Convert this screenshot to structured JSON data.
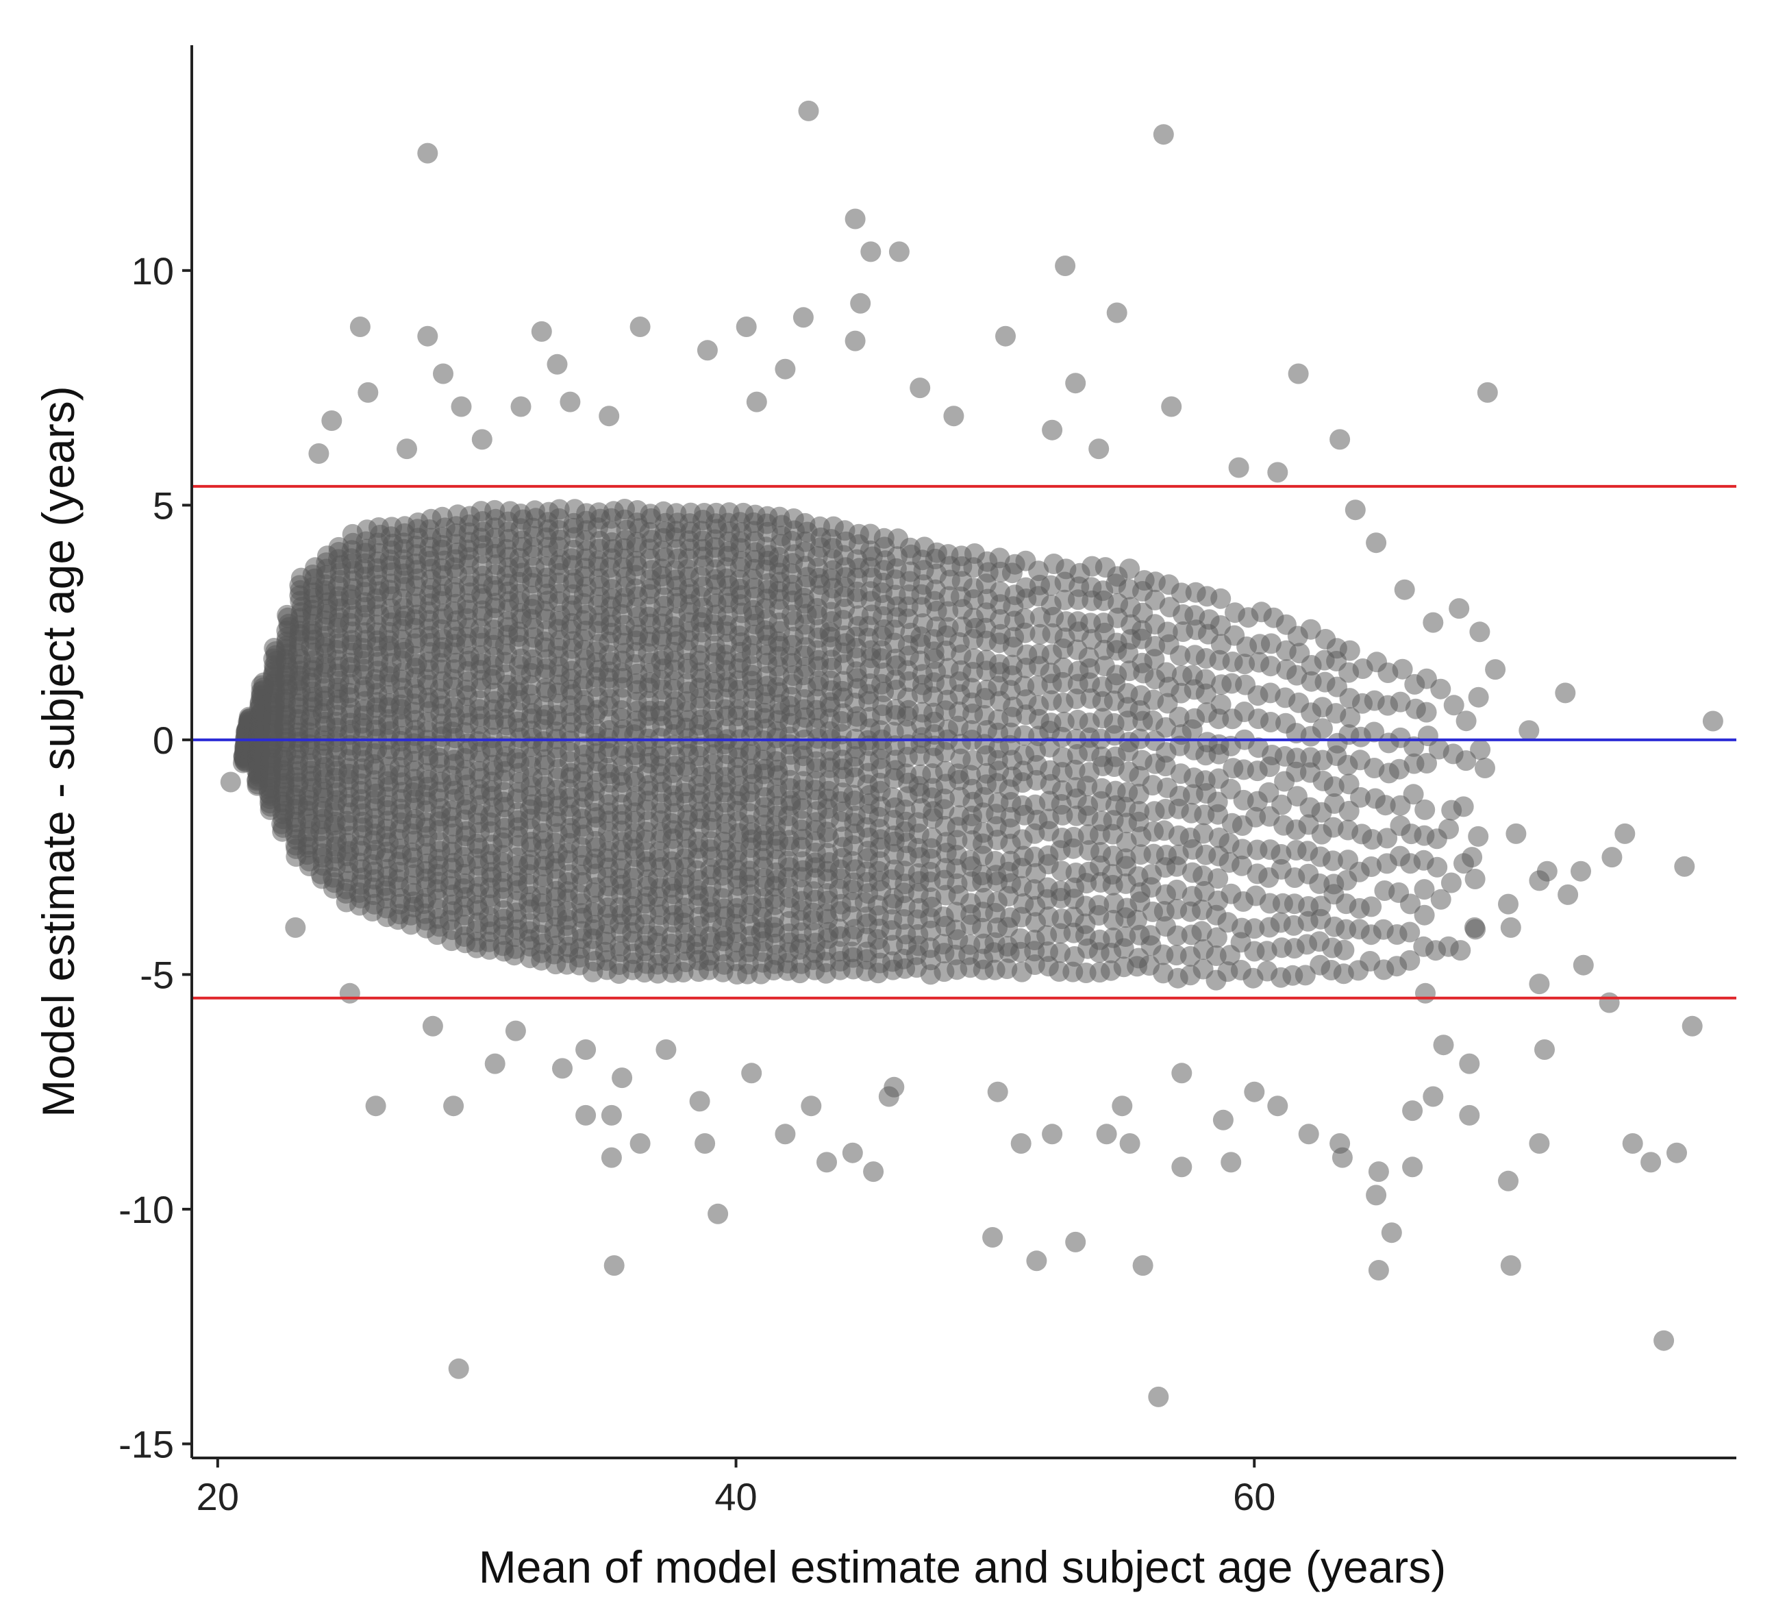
{
  "chart_data": {
    "type": "scatter",
    "title": "",
    "xlabel": "Mean of model estimate and subject age (years)",
    "ylabel": "Model estimate - subject age (years)",
    "xlim": [
      19,
      78.6
    ],
    "ylim": [
      -15.3,
      14.8
    ],
    "x_ticks": [
      20,
      40,
      60
    ],
    "x_tick_labels": [
      "20",
      "40",
      "60"
    ],
    "y_ticks": [
      10,
      5,
      0,
      -5,
      -10,
      -15
    ],
    "y_tick_labels": [
      "10",
      "5",
      "0",
      "-5",
      "-10",
      "-15"
    ],
    "grid": false,
    "legend": "none",
    "point_color": "#555555",
    "point_opacity": 0.5,
    "reference_lines": [
      {
        "kind": "mean",
        "y": 0,
        "color": "#2b2bd6"
      },
      {
        "kind": "upper limit of agreement",
        "y": 5.4,
        "color": "#e0262a"
      },
      {
        "kind": "lower limit of agreement",
        "y": -5.5,
        "color": "#e0262a"
      }
    ],
    "dense_band": {
      "note": "approximate envelope of the dense point cloud, by x",
      "x": [
        21,
        23,
        25,
        30,
        35,
        40,
        45,
        50,
        55,
        60,
        65,
        68
      ],
      "y_upper": [
        0.5,
        3.5,
        4.5,
        5.0,
        5.0,
        5.0,
        4.5,
        4.0,
        3.8,
        3.0,
        2.0,
        1.5
      ],
      "y_lower": [
        -0.5,
        -2.5,
        -3.5,
        -4.5,
        -5.0,
        -5.0,
        -5.0,
        -5.0,
        -5.0,
        -5.2,
        -5.0,
        -4.5
      ],
      "x_bins": [
        21,
        22,
        23,
        24,
        25,
        26,
        27,
        28,
        29,
        30,
        31,
        32,
        33,
        34,
        35,
        36,
        37,
        38,
        39,
        40,
        41,
        42,
        43,
        44,
        45,
        46,
        47,
        48,
        49,
        50,
        51,
        52,
        53,
        54,
        55,
        56,
        57,
        58,
        59,
        60,
        61,
        62,
        63,
        64,
        65,
        66,
        67,
        68
      ],
      "bin_density": [
        9,
        10,
        10,
        10,
        10,
        10,
        10,
        10,
        10,
        10,
        10,
        10,
        10,
        10,
        10,
        10,
        10,
        10,
        10,
        10,
        10,
        9,
        9,
        8,
        8,
        7,
        7,
        6,
        6,
        6,
        5,
        5,
        5,
        5,
        5,
        4,
        4,
        4,
        3,
        3,
        3,
        3,
        3,
        2,
        2,
        2,
        1,
        1
      ]
    },
    "outliers": [
      {
        "x": 42.8,
        "y": 13.4
      },
      {
        "x": 28.1,
        "y": 12.5
      },
      {
        "x": 56.5,
        "y": 12.9
      },
      {
        "x": 44.6,
        "y": 11.1
      },
      {
        "x": 45.2,
        "y": 10.4
      },
      {
        "x": 46.3,
        "y": 10.4
      },
      {
        "x": 52.7,
        "y": 10.1
      },
      {
        "x": 54.7,
        "y": 9.1
      },
      {
        "x": 44.8,
        "y": 9.3
      },
      {
        "x": 42.6,
        "y": 9.0
      },
      {
        "x": 25.5,
        "y": 8.8
      },
      {
        "x": 28.1,
        "y": 8.6
      },
      {
        "x": 32.5,
        "y": 8.7
      },
      {
        "x": 36.3,
        "y": 8.8
      },
      {
        "x": 40.4,
        "y": 8.8
      },
      {
        "x": 44.6,
        "y": 8.5
      },
      {
        "x": 50.4,
        "y": 8.6
      },
      {
        "x": 28.7,
        "y": 7.8
      },
      {
        "x": 33.1,
        "y": 8.0
      },
      {
        "x": 38.9,
        "y": 8.3
      },
      {
        "x": 41.9,
        "y": 7.9
      },
      {
        "x": 61.7,
        "y": 7.8
      },
      {
        "x": 25.8,
        "y": 7.4
      },
      {
        "x": 29.4,
        "y": 7.1
      },
      {
        "x": 31.7,
        "y": 7.1
      },
      {
        "x": 33.6,
        "y": 7.2
      },
      {
        "x": 47.1,
        "y": 7.5
      },
      {
        "x": 53.1,
        "y": 7.6
      },
      {
        "x": 56.8,
        "y": 7.1
      },
      {
        "x": 69.0,
        "y": 7.4
      },
      {
        "x": 24.4,
        "y": 6.8
      },
      {
        "x": 35.1,
        "y": 6.9
      },
      {
        "x": 40.8,
        "y": 7.2
      },
      {
        "x": 48.4,
        "y": 6.9
      },
      {
        "x": 52.2,
        "y": 6.6
      },
      {
        "x": 23.9,
        "y": 6.1
      },
      {
        "x": 27.3,
        "y": 6.2
      },
      {
        "x": 30.2,
        "y": 6.4
      },
      {
        "x": 54.0,
        "y": 6.2
      },
      {
        "x": 63.3,
        "y": 6.4
      },
      {
        "x": 59.4,
        "y": 5.8
      },
      {
        "x": 60.9,
        "y": 5.7
      },
      {
        "x": 63.9,
        "y": 4.9
      },
      {
        "x": 64.7,
        "y": 4.2
      },
      {
        "x": 65.8,
        "y": 3.2
      },
      {
        "x": 66.9,
        "y": 2.5
      },
      {
        "x": 67.9,
        "y": 2.8
      },
      {
        "x": 68.7,
        "y": 2.3
      },
      {
        "x": 69.3,
        "y": 1.5
      },
      {
        "x": 72.0,
        "y": 1.0
      },
      {
        "x": 70.6,
        "y": 0.2
      },
      {
        "x": 77.7,
        "y": 0.4
      },
      {
        "x": 68.9,
        "y": -0.6
      },
      {
        "x": 20.5,
        "y": -0.9
      },
      {
        "x": 67.5,
        "y": -1.9
      },
      {
        "x": 70.1,
        "y": -2.0
      },
      {
        "x": 68.4,
        "y": -2.5
      },
      {
        "x": 71.3,
        "y": -2.8
      },
      {
        "x": 72.6,
        "y": -2.8
      },
      {
        "x": 73.8,
        "y": -2.5
      },
      {
        "x": 74.3,
        "y": -2.0
      },
      {
        "x": 76.6,
        "y": -2.7
      },
      {
        "x": 71.0,
        "y": -3.0
      },
      {
        "x": 67.2,
        "y": -3.4
      },
      {
        "x": 69.8,
        "y": -3.5
      },
      {
        "x": 72.1,
        "y": -3.3
      },
      {
        "x": 68.5,
        "y": -4.0
      },
      {
        "x": 69.9,
        "y": -4.0
      },
      {
        "x": 23.0,
        "y": -4.0
      },
      {
        "x": 25.1,
        "y": -5.4
      },
      {
        "x": 71.0,
        "y": -5.2
      },
      {
        "x": 72.7,
        "y": -4.8
      },
      {
        "x": 73.7,
        "y": -5.6
      },
      {
        "x": 76.9,
        "y": -6.1
      },
      {
        "x": 66.6,
        "y": -5.4
      },
      {
        "x": 67.3,
        "y": -6.5
      },
      {
        "x": 68.3,
        "y": -6.9
      },
      {
        "x": 71.2,
        "y": -6.6
      },
      {
        "x": 28.3,
        "y": -6.1
      },
      {
        "x": 31.5,
        "y": -6.2
      },
      {
        "x": 34.2,
        "y": -6.6
      },
      {
        "x": 37.3,
        "y": -6.6
      },
      {
        "x": 26.1,
        "y": -7.8
      },
      {
        "x": 29.1,
        "y": -7.8
      },
      {
        "x": 30.7,
        "y": -6.9
      },
      {
        "x": 33.3,
        "y": -7.0
      },
      {
        "x": 35.6,
        "y": -7.2
      },
      {
        "x": 38.6,
        "y": -7.7
      },
      {
        "x": 40.6,
        "y": -7.1
      },
      {
        "x": 42.9,
        "y": -7.8
      },
      {
        "x": 45.9,
        "y": -7.6
      },
      {
        "x": 46.1,
        "y": -7.4
      },
      {
        "x": 50.1,
        "y": -7.5
      },
      {
        "x": 54.9,
        "y": -7.8
      },
      {
        "x": 57.2,
        "y": -7.1
      },
      {
        "x": 60.0,
        "y": -7.5
      },
      {
        "x": 60.9,
        "y": -7.8
      },
      {
        "x": 66.1,
        "y": -7.9
      },
      {
        "x": 66.9,
        "y": -7.6
      },
      {
        "x": 68.3,
        "y": -8.0
      },
      {
        "x": 34.2,
        "y": -8.0
      },
      {
        "x": 35.2,
        "y": -8.0
      },
      {
        "x": 36.3,
        "y": -8.6
      },
      {
        "x": 41.9,
        "y": -8.4
      },
      {
        "x": 44.5,
        "y": -8.8
      },
      {
        "x": 52.2,
        "y": -8.4
      },
      {
        "x": 54.3,
        "y": -8.4
      },
      {
        "x": 55.2,
        "y": -8.6
      },
      {
        "x": 58.8,
        "y": -8.1
      },
      {
        "x": 62.1,
        "y": -8.4
      },
      {
        "x": 63.3,
        "y": -8.6
      },
      {
        "x": 71.0,
        "y": -8.6
      },
      {
        "x": 74.6,
        "y": -8.6
      },
      {
        "x": 35.2,
        "y": -8.9
      },
      {
        "x": 38.8,
        "y": -8.6
      },
      {
        "x": 43.5,
        "y": -9.0
      },
      {
        "x": 45.3,
        "y": -9.2
      },
      {
        "x": 51.0,
        "y": -8.6
      },
      {
        "x": 57.2,
        "y": -9.1
      },
      {
        "x": 59.1,
        "y": -9.0
      },
      {
        "x": 63.4,
        "y": -8.9
      },
      {
        "x": 64.8,
        "y": -9.2
      },
      {
        "x": 66.1,
        "y": -9.1
      },
      {
        "x": 69.8,
        "y": -9.4
      },
      {
        "x": 75.3,
        "y": -9.0
      },
      {
        "x": 76.3,
        "y": -8.8
      },
      {
        "x": 39.3,
        "y": -10.1
      },
      {
        "x": 64.7,
        "y": -9.7
      },
      {
        "x": 65.3,
        "y": -10.5
      },
      {
        "x": 49.9,
        "y": -10.6
      },
      {
        "x": 53.1,
        "y": -10.7
      },
      {
        "x": 35.3,
        "y": -11.2
      },
      {
        "x": 51.6,
        "y": -11.1
      },
      {
        "x": 55.7,
        "y": -11.2
      },
      {
        "x": 64.8,
        "y": -11.3
      },
      {
        "x": 69.9,
        "y": -11.2
      },
      {
        "x": 29.3,
        "y": -13.4
      },
      {
        "x": 75.8,
        "y": -12.8
      },
      {
        "x": 56.3,
        "y": -14.0
      }
    ]
  }
}
